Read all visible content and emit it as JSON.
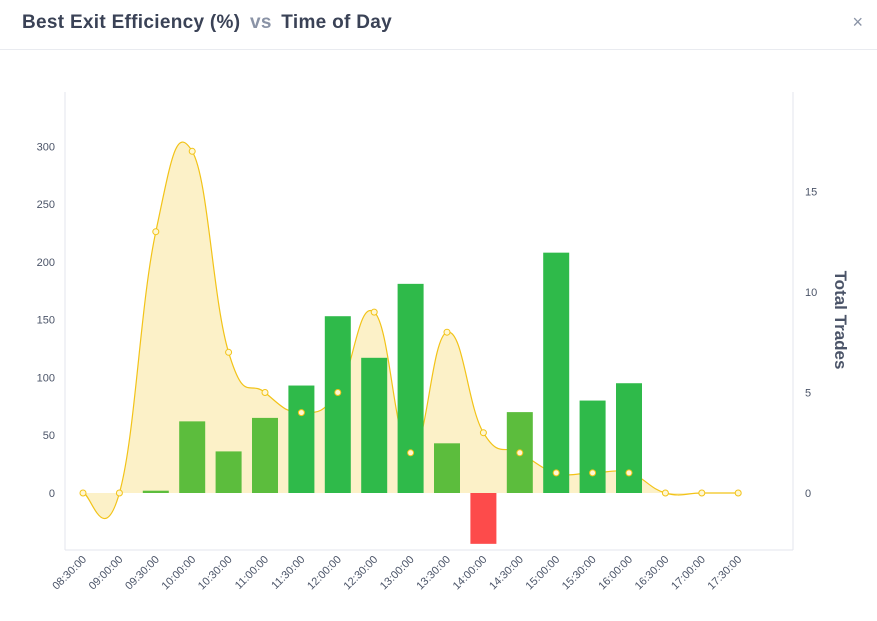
{
  "header": {
    "title_metric": "Best Exit Efficiency (%)",
    "title_vs": "vs",
    "title_dimension": "Time of Day",
    "close_glyph": "×"
  },
  "chart_data": {
    "type": "bar+area",
    "title": "Best Exit Efficiency (%) vs Time of Day",
    "categories": [
      "08:30:00",
      "09:00:00",
      "09:30:00",
      "10:00:00",
      "10:30:00",
      "11:00:00",
      "11:30:00",
      "12:00:00",
      "12:30:00",
      "13:00:00",
      "13:30:00",
      "14:00:00",
      "14:30:00",
      "15:00:00",
      "15:30:00",
      "16:00:00",
      "16:30:00",
      "17:00:00",
      "17:30:00"
    ],
    "series": [
      {
        "name": "Best Exit Efficiency (%)",
        "type": "bar",
        "axis": "left",
        "values": [
          0,
          0,
          2,
          62,
          36,
          65,
          93,
          153,
          117,
          181,
          43,
          -44,
          70,
          208,
          80,
          95,
          0,
          0,
          0
        ]
      },
      {
        "name": "Total Trades",
        "type": "area",
        "axis": "right",
        "values": [
          0,
          0,
          13,
          17,
          7,
          5,
          4,
          5,
          9,
          2,
          8,
          3,
          2,
          1,
          1,
          1,
          0,
          0,
          0
        ]
      }
    ],
    "y_left": {
      "ticks": [
        0,
        50,
        100,
        150,
        200,
        250,
        300
      ],
      "range": [
        -50,
        350
      ]
    },
    "y_right": {
      "label": "Total Trades",
      "ticks": [
        0,
        5,
        10,
        15
      ],
      "range": [
        -2.6,
        20
      ]
    },
    "colors": {
      "positive_high": "#2fba4a",
      "positive_low": "#5cbd3d",
      "negative": "#fd4b4b",
      "area_stroke": "#f2c318",
      "area_fill": "#fcf1c8",
      "gridline": "#e3e6ec"
    }
  }
}
